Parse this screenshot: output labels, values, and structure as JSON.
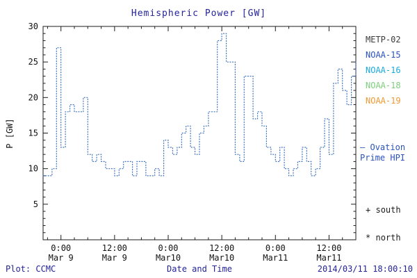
{
  "title": "Hemispheric Power [GW]",
  "ylabel": "P [GW]",
  "footer": {
    "credit": "Plot: CCMC",
    "xlabel": "Date and Time",
    "timestamp": "2014/03/11 18:00:10"
  },
  "legend": {
    "satellites": [
      {
        "label": "METP-02",
        "color": "#3b3b3b"
      },
      {
        "label": "NOAA-15",
        "color": "#2a52be"
      },
      {
        "label": "NOAA-16",
        "color": "#19aadd"
      },
      {
        "label": "NOAA-18",
        "color": "#7ccf7c"
      },
      {
        "label": "NOAA-19",
        "color": "#ee9933"
      }
    ],
    "series_label": {
      "dash": "—",
      "line1": "Ovation",
      "line2": "Prime HPI",
      "color": "#2a52be"
    },
    "markers": [
      {
        "symbol": "+",
        "label": "south"
      },
      {
        "symbol": "*",
        "label": "north"
      }
    ]
  },
  "chart_data": {
    "type": "line",
    "title": "Hemispheric Power [GW]",
    "xlabel": "Date and Time",
    "ylabel": "P [GW]",
    "ylim": [
      0,
      30
    ],
    "yticks": [
      0,
      5,
      10,
      15,
      20,
      25,
      30
    ],
    "ytick_labels": [
      "",
      "5",
      "10",
      "15",
      "20",
      "25",
      "30"
    ],
    "x_hours_range": [
      -4,
      66
    ],
    "x_minor_step_hours": 3,
    "y_minor_step": 1,
    "grid": false,
    "legend_position": "right",
    "xticks": [
      {
        "hour": 0,
        "time": "0:00",
        "date": "Mar 9"
      },
      {
        "hour": 12,
        "time": "12:00",
        "date": "Mar 9"
      },
      {
        "hour": 24,
        "time": "0:00",
        "date": "Mar10"
      },
      {
        "hour": 36,
        "time": "12:00",
        "date": "Mar10"
      },
      {
        "hour": 48,
        "time": "0:00",
        "date": "Mar11"
      },
      {
        "hour": 60,
        "time": "12:00",
        "date": "Mar11"
      }
    ],
    "series": [
      {
        "name": "Ovation Prime HPI",
        "color": "#3a6fc0",
        "style": "dotted-step",
        "x_start_hour": -4,
        "step_hours": 1,
        "values": [
          9,
          9,
          10,
          27,
          13,
          18,
          19,
          18,
          18,
          20,
          12,
          11,
          12,
          11,
          10,
          10,
          9,
          10,
          11,
          11,
          9,
          11,
          11,
          9,
          9,
          10,
          9,
          14,
          13,
          12,
          13,
          15,
          16,
          13,
          12,
          15,
          16,
          18,
          18,
          28,
          29,
          25,
          25,
          12,
          11,
          23,
          23,
          17,
          18,
          16,
          13,
          12,
          11,
          13,
          10,
          9,
          10,
          11,
          13,
          11,
          9,
          10,
          13,
          17,
          12,
          22,
          24,
          21,
          19,
          23,
          25
        ]
      }
    ]
  }
}
